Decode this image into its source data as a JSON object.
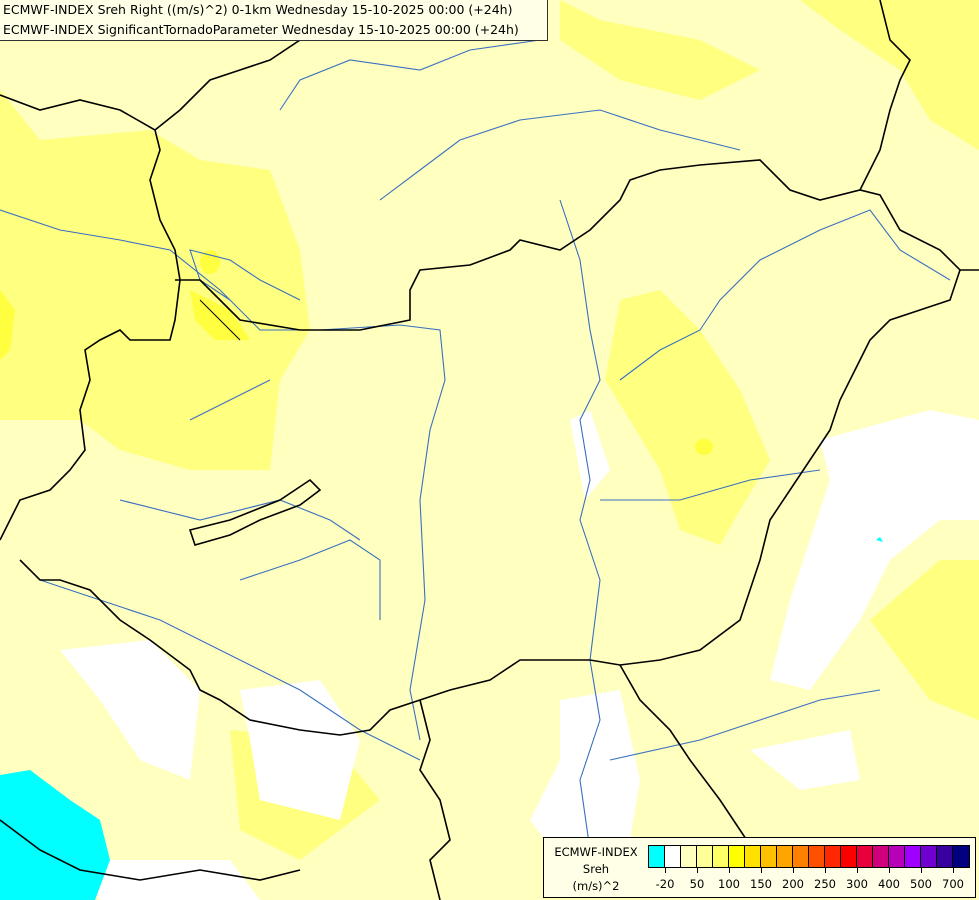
{
  "titles": [
    "ECMWF-INDEX Sreh Right ((m/s)^2) 0-1km Wednesday 15-10-2025 00:00 (+24h)",
    "ECMWF-INDEX SignificantTornadoParameter Wednesday 15-10-2025 00:00 (+24h)"
  ],
  "legend": {
    "line1": "ECMWF-INDEX",
    "line2": "Sreh",
    "line3": "(m/s)^2",
    "colors": [
      "#00ffff",
      "#ffffff",
      "#ffffc0",
      "#ffff99",
      "#ffff66",
      "#ffff00",
      "#ffe000",
      "#ffc000",
      "#ffa500",
      "#ff8000",
      "#ff5000",
      "#ff2800",
      "#ff0000",
      "#e8003c",
      "#d0007c",
      "#b800b8",
      "#a000ff",
      "#7000d0",
      "#3800a0",
      "#000080"
    ],
    "tick_labels": [
      "-20",
      "50",
      "100",
      "150",
      "200",
      "250",
      "300",
      "400",
      "500",
      "700"
    ]
  },
  "map_colors": {
    "base": "#ffffc0",
    "light_yellow": "#ffff80",
    "yellow": "#ffff40",
    "white": "#ffffff",
    "cyan": "#00ffff",
    "river": "#3a70c0",
    "border": "#000000"
  }
}
